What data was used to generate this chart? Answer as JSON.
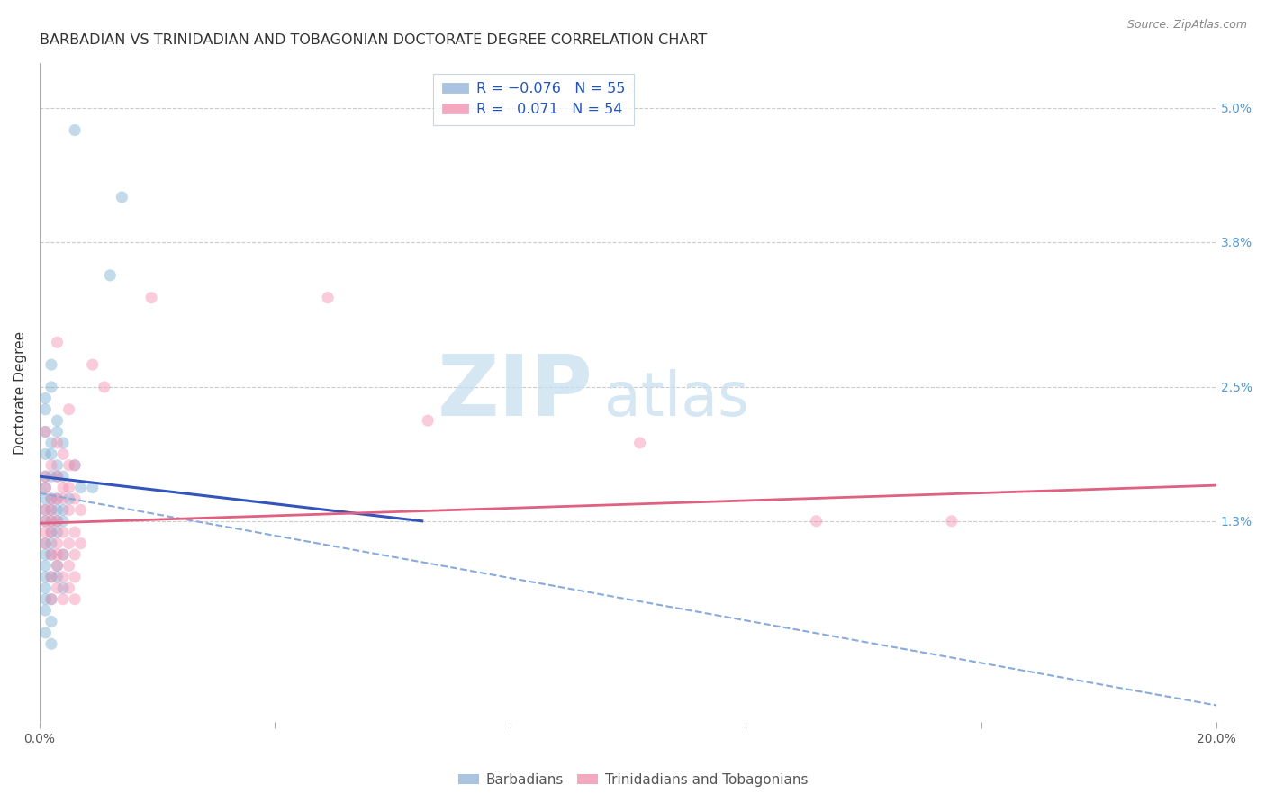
{
  "title": "BARBADIAN VS TRINIDADIAN AND TOBAGONIAN DOCTORATE DEGREE CORRELATION CHART",
  "source": "Source: ZipAtlas.com",
  "ylabel": "Doctorate Degree",
  "xlim": [
    0.0,
    0.2
  ],
  "ylim": [
    -0.005,
    0.054
  ],
  "xticks": [
    0.0,
    0.04,
    0.08,
    0.12,
    0.16,
    0.2
  ],
  "xticklabels": [
    "0.0%",
    "",
    "",
    "",
    "",
    "20.0%"
  ],
  "right_yticks": [
    0.013,
    0.025,
    0.038,
    0.05
  ],
  "right_yticklabels": [
    "1.3%",
    "2.5%",
    "3.8%",
    "5.0%"
  ],
  "watermark_zip": "ZIP",
  "watermark_atlas": "atlas",
  "blue_scatter": [
    [
      0.006,
      0.048
    ],
    [
      0.014,
      0.042
    ],
    [
      0.012,
      0.035
    ],
    [
      0.002,
      0.027
    ],
    [
      0.002,
      0.025
    ],
    [
      0.001,
      0.024
    ],
    [
      0.001,
      0.023
    ],
    [
      0.003,
      0.022
    ],
    [
      0.003,
      0.021
    ],
    [
      0.001,
      0.021
    ],
    [
      0.002,
      0.02
    ],
    [
      0.004,
      0.02
    ],
    [
      0.001,
      0.019
    ],
    [
      0.002,
      0.019
    ],
    [
      0.003,
      0.018
    ],
    [
      0.006,
      0.018
    ],
    [
      0.001,
      0.017
    ],
    [
      0.002,
      0.017
    ],
    [
      0.004,
      0.017
    ],
    [
      0.003,
      0.017
    ],
    [
      0.007,
      0.016
    ],
    [
      0.001,
      0.016
    ],
    [
      0.009,
      0.016
    ],
    [
      0.001,
      0.015
    ],
    [
      0.003,
      0.015
    ],
    [
      0.005,
      0.015
    ],
    [
      0.002,
      0.015
    ],
    [
      0.001,
      0.014
    ],
    [
      0.003,
      0.014
    ],
    [
      0.002,
      0.014
    ],
    [
      0.004,
      0.014
    ],
    [
      0.001,
      0.013
    ],
    [
      0.002,
      0.013
    ],
    [
      0.003,
      0.013
    ],
    [
      0.004,
      0.013
    ],
    [
      0.002,
      0.012
    ],
    [
      0.003,
      0.012
    ],
    [
      0.001,
      0.011
    ],
    [
      0.002,
      0.011
    ],
    [
      0.001,
      0.01
    ],
    [
      0.002,
      0.01
    ],
    [
      0.004,
      0.01
    ],
    [
      0.001,
      0.009
    ],
    [
      0.003,
      0.009
    ],
    [
      0.001,
      0.008
    ],
    [
      0.002,
      0.008
    ],
    [
      0.003,
      0.008
    ],
    [
      0.001,
      0.007
    ],
    [
      0.004,
      0.007
    ],
    [
      0.001,
      0.006
    ],
    [
      0.002,
      0.006
    ],
    [
      0.001,
      0.005
    ],
    [
      0.002,
      0.004
    ],
    [
      0.001,
      0.003
    ],
    [
      0.002,
      0.002
    ]
  ],
  "pink_scatter": [
    [
      0.019,
      0.033
    ],
    [
      0.003,
      0.029
    ],
    [
      0.009,
      0.027
    ],
    [
      0.011,
      0.025
    ],
    [
      0.005,
      0.023
    ],
    [
      0.049,
      0.033
    ],
    [
      0.066,
      0.022
    ],
    [
      0.102,
      0.02
    ],
    [
      0.132,
      0.013
    ],
    [
      0.155,
      0.013
    ],
    [
      0.001,
      0.021
    ],
    [
      0.003,
      0.02
    ],
    [
      0.004,
      0.019
    ],
    [
      0.005,
      0.018
    ],
    [
      0.006,
      0.018
    ],
    [
      0.002,
      0.018
    ],
    [
      0.001,
      0.017
    ],
    [
      0.003,
      0.017
    ],
    [
      0.004,
      0.016
    ],
    [
      0.005,
      0.016
    ],
    [
      0.001,
      0.016
    ],
    [
      0.002,
      0.015
    ],
    [
      0.003,
      0.015
    ],
    [
      0.006,
      0.015
    ],
    [
      0.004,
      0.015
    ],
    [
      0.001,
      0.014
    ],
    [
      0.002,
      0.014
    ],
    [
      0.005,
      0.014
    ],
    [
      0.007,
      0.014
    ],
    [
      0.001,
      0.013
    ],
    [
      0.003,
      0.013
    ],
    [
      0.002,
      0.013
    ],
    [
      0.001,
      0.012
    ],
    [
      0.004,
      0.012
    ],
    [
      0.006,
      0.012
    ],
    [
      0.002,
      0.012
    ],
    [
      0.003,
      0.011
    ],
    [
      0.005,
      0.011
    ],
    [
      0.007,
      0.011
    ],
    [
      0.001,
      0.011
    ],
    [
      0.002,
      0.01
    ],
    [
      0.004,
      0.01
    ],
    [
      0.003,
      0.01
    ],
    [
      0.006,
      0.01
    ],
    [
      0.005,
      0.009
    ],
    [
      0.003,
      0.009
    ],
    [
      0.002,
      0.008
    ],
    [
      0.004,
      0.008
    ],
    [
      0.006,
      0.008
    ],
    [
      0.003,
      0.007
    ],
    [
      0.005,
      0.007
    ],
    [
      0.004,
      0.006
    ],
    [
      0.006,
      0.006
    ],
    [
      0.002,
      0.006
    ]
  ],
  "blue_solid_line": {
    "x0": 0.0,
    "x1": 0.065,
    "y0": 0.017,
    "y1": 0.013
  },
  "blue_dash_line": {
    "x0": 0.0,
    "x1": 0.2,
    "y0": 0.0155,
    "y1": -0.0035
  },
  "pink_solid_line": {
    "x0": 0.0,
    "x1": 0.2,
    "y0": 0.0128,
    "y1": 0.0162
  },
  "background_color": "#ffffff",
  "scatter_blue_color": "#7bafd4",
  "scatter_pink_color": "#f48fb1",
  "trend_blue_solid_color": "#3355bb",
  "trend_blue_dash_color": "#88aadd",
  "trend_pink_color": "#e06080",
  "grid_color": "#cccccc",
  "title_color": "#333333",
  "title_fontsize": 11.5,
  "axis_label_fontsize": 11,
  "tick_fontsize": 10,
  "scatter_size": 90,
  "scatter_alpha": 0.45
}
